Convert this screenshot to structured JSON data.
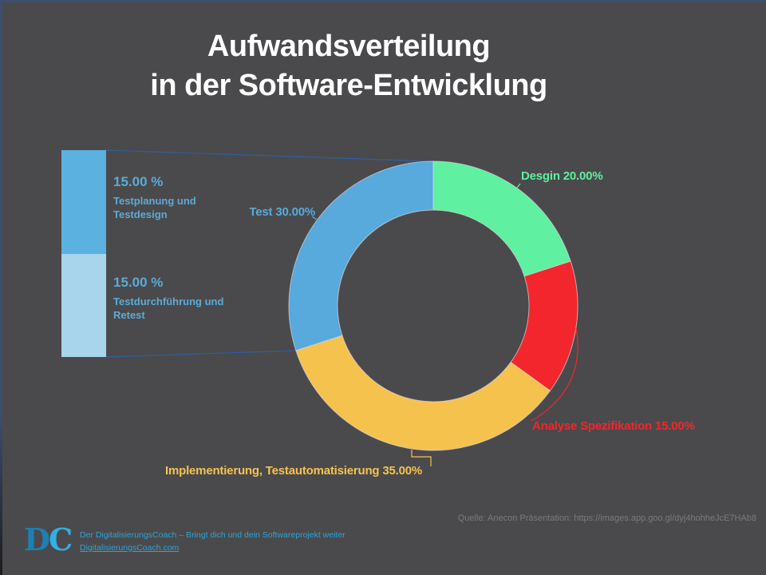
{
  "slide": {
    "title_line1": "Aufwandsverteilung",
    "title_line2": "in der Software-Entwicklung"
  },
  "chart_data": {
    "type": "pie",
    "variant": "donut",
    "title": "Aufwandsverteilung in der Software-Entwicklung",
    "units": "%",
    "start_angle_deg": 0,
    "direction": "clockwise",
    "segments": [
      {
        "name": "Desgin",
        "value": 20.0,
        "label": "Desgin 20.00%",
        "color": "#5FF0A1"
      },
      {
        "name": "Analyse Spezifikation",
        "value": 15.0,
        "label": "Analyse Spezifikation 15.00%",
        "color": "#F2262C"
      },
      {
        "name": "Implementierung, Testautomatisierung",
        "value": 35.0,
        "label": "Implementierung, Testautomatisierung 35.00%",
        "color": "#F6C24E"
      },
      {
        "name": "Test",
        "value": 30.0,
        "label": "Test 30.00%",
        "color": "#58A9DC"
      }
    ],
    "test_breakdown": [
      {
        "percent_label": "15.00 %",
        "line1": "Testplanung und",
        "line2": "Testdesign",
        "color": "#5BB1DF"
      },
      {
        "percent_label": "15.00 %",
        "line1": "Testdurchführung und",
        "line2": "Retest",
        "color": "#A8D5EC"
      }
    ]
  },
  "footer": {
    "logo_d": "D",
    "logo_c": "C",
    "tagline": "Der DigitalisierungsCoach – Bringt dich und dein Softwareprojekt weiter",
    "link": "DigitalisierungsCoach.com",
    "source": "Quelle: Anecon Präsentation: https://images.app.goo.gl/dyj4hohheJcE7HAb8"
  },
  "colors": {
    "background": "#4A4A4C",
    "border_accent": "#3E4E71",
    "title_text": "#FFFFFF",
    "funnel_line": "#2F5EA0",
    "segment_outline": "#D9D9D9",
    "bar_text": "#5CAAD9",
    "footer_blue": "#2BA3DB",
    "logo_d_color": "#1E7FB5",
    "logo_c_color": "#35AEE3",
    "source_gray": "#7A7A7A"
  }
}
